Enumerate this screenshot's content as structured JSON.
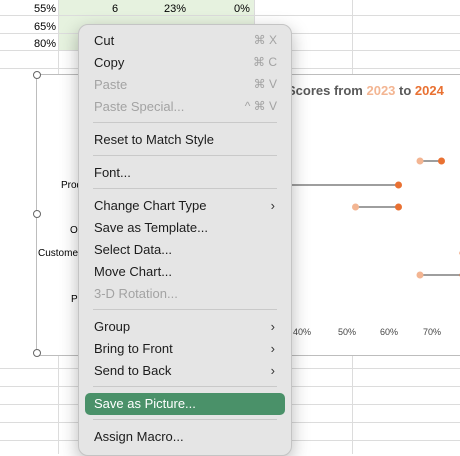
{
  "sheet": {
    "rows": [
      {
        "a": "55%",
        "b": "6",
        "c": "23%",
        "d": "0%"
      },
      {
        "a": "65%",
        "b": "",
        "c": "",
        "d": ""
      },
      {
        "a": "80%",
        "b": "",
        "c": "",
        "d": ""
      }
    ]
  },
  "chart": {
    "title_prefix": "Scores from ",
    "year1": "2023",
    "title_mid": " to ",
    "year2": "2024",
    "color_2023": "#f3b592",
    "color_2024": "#e97132",
    "labels": [
      "Prod",
      "Op",
      "Custome",
      "Pr"
    ],
    "xticks": [
      "40%",
      "50%",
      "60%",
      "70%"
    ]
  },
  "chart_data": {
    "type": "scatter",
    "title": "Scores from 2023 to 2024",
    "xlim": [
      0.3,
      0.8
    ],
    "series": [
      {
        "name": "2023",
        "values": [
          0.78,
          0.6,
          0.45,
          0.75,
          0.6
        ]
      },
      {
        "name": "2024",
        "values": [
          0.74,
          0.65,
          0.55,
          0.7,
          0.7
        ]
      }
    ],
    "extra_2024_points": [
      0.55
    ]
  },
  "menu": {
    "items": [
      {
        "label": "Cut",
        "shortcut": "⌘ X",
        "disabled": false
      },
      {
        "label": "Copy",
        "shortcut": "⌘ C",
        "disabled": false
      },
      {
        "label": "Paste",
        "shortcut": "⌘ V",
        "disabled": true
      },
      {
        "label": "Paste Special...",
        "shortcut": "^ ⌘ V",
        "disabled": true
      },
      {
        "label": "Reset to Match Style"
      },
      {
        "label": "Font..."
      },
      {
        "label": "Change Chart Type"
      },
      {
        "label": "Save as Template..."
      },
      {
        "label": "Select Data..."
      },
      {
        "label": "Move Chart..."
      },
      {
        "label": "3-D Rotation...",
        "disabled": true
      },
      {
        "label": "Group"
      },
      {
        "label": "Bring to Front"
      },
      {
        "label": "Send to Back"
      },
      {
        "label": "Save as Picture..."
      },
      {
        "label": "Assign Macro..."
      }
    ],
    "submenu_arrow": "›"
  }
}
